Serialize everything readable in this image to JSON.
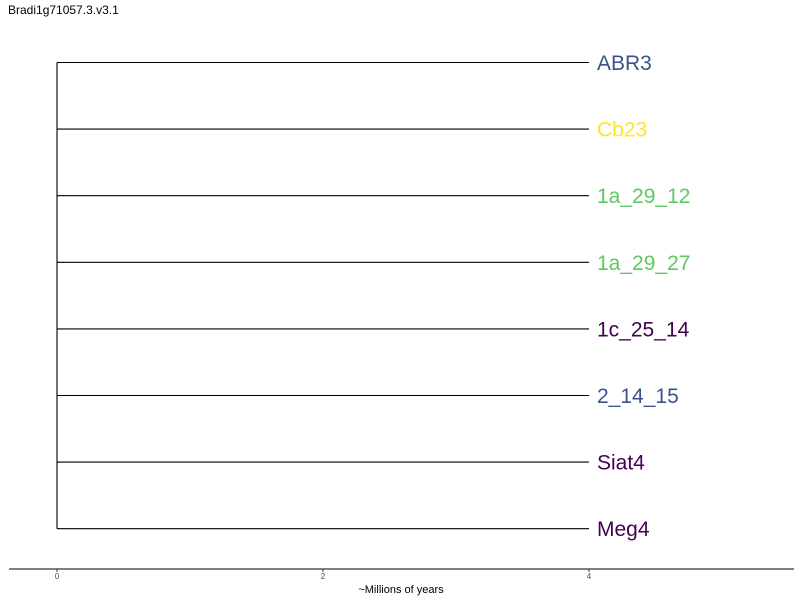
{
  "title": "Bradi1g71057.3.v3.1",
  "chart_data": {
    "type": "dendrogram",
    "title": "Bradi1g71057.3.v3.1",
    "xlabel": "~Millions of years",
    "ylabel": "",
    "xlim": [
      0,
      5.5
    ],
    "x_ticks": [
      "0",
      "2",
      "4"
    ],
    "x_tick_values": [
      0,
      2,
      4
    ],
    "root_x": 0,
    "leaves": [
      {
        "label": "ABR3",
        "x": 4.0,
        "color": "#3b528b"
      },
      {
        "label": "Cb23",
        "x": 4.0,
        "color": "#fde725"
      },
      {
        "label": "1a_29_12",
        "x": 4.0,
        "color": "#5ec962"
      },
      {
        "label": "1a_29_27",
        "x": 4.0,
        "color": "#5ec962"
      },
      {
        "label": "1c_25_14",
        "x": 4.0,
        "color": "#440154"
      },
      {
        "label": "2_14_15",
        "x": 4.0,
        "color": "#3b528b"
      },
      {
        "label": "Siat4",
        "x": 4.0,
        "color": "#440154"
      },
      {
        "label": "Meg4",
        "x": 4.0,
        "color": "#440154"
      }
    ],
    "grid": false,
    "legend": "none"
  }
}
